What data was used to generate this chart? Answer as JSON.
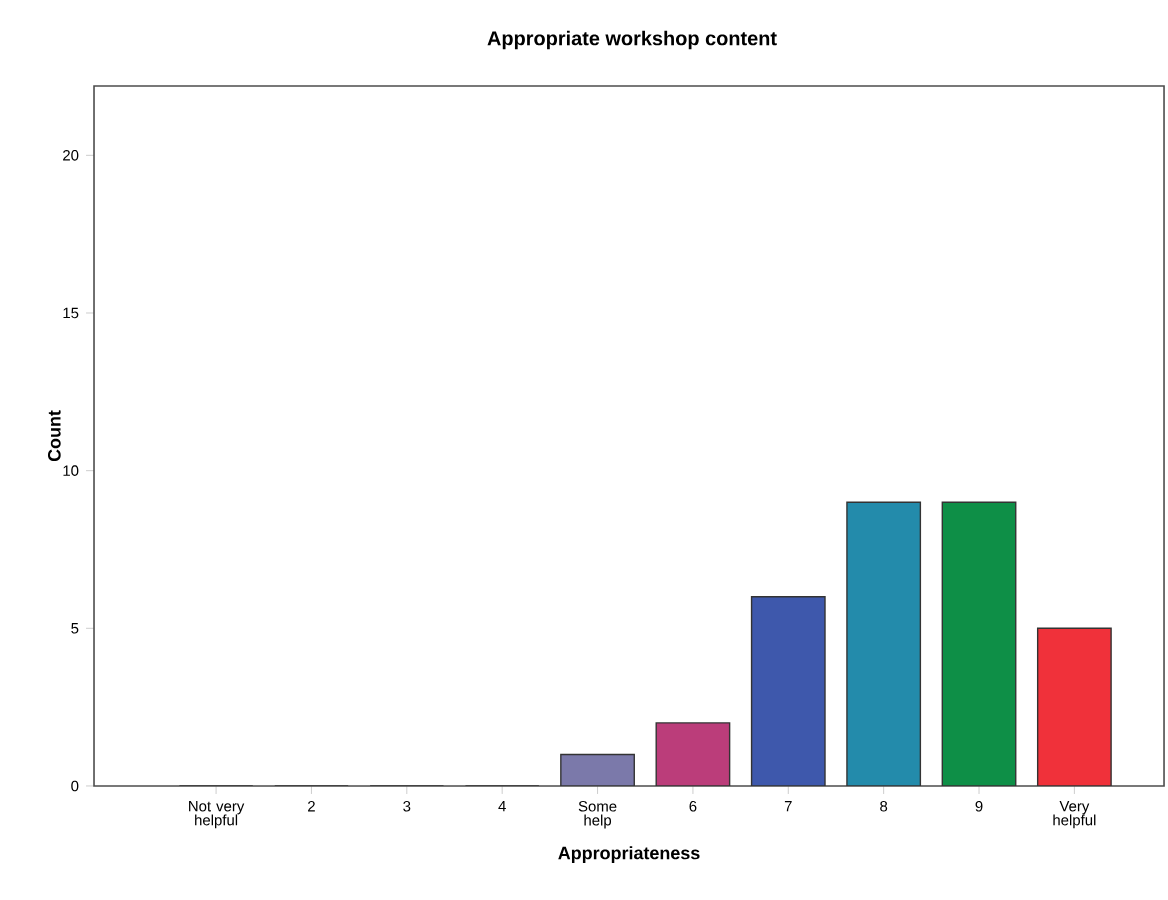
{
  "chart_data": {
    "type": "bar",
    "title": "Appropriate workshop content",
    "xlabel": "Appropriateness",
    "ylabel": "Count",
    "categories": [
      "Not very helpful",
      "2",
      "3",
      "4",
      "Some help",
      "6",
      "7",
      "8",
      "9",
      "Very helpful"
    ],
    "values": [
      0,
      0,
      0,
      0,
      1,
      2,
      6,
      9,
      9,
      5
    ],
    "colors": [
      "#3e58ac",
      "#2e8b57",
      "#d1e5bd",
      "#f3e08b",
      "#7b79aa",
      "#bb3d7a",
      "#3e58ac",
      "#238bab",
      "#0e8f47",
      "#f0313a"
    ],
    "ylim": [
      0,
      22.2
    ],
    "yticks": [
      0,
      5,
      10,
      15,
      20
    ]
  }
}
